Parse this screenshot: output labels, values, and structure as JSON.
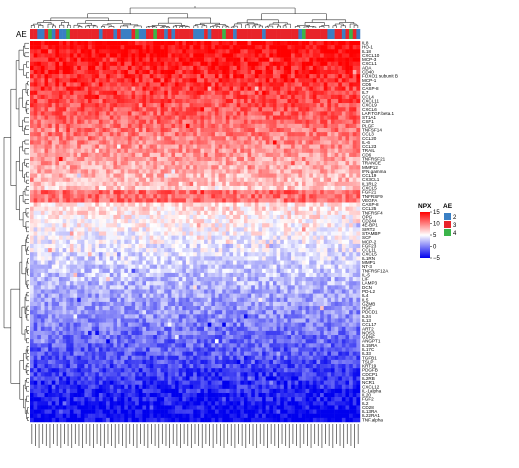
{
  "chart_data": {
    "type": "heatmap",
    "title": "",
    "annotation_track_label": "AE",
    "legend_placement": "right",
    "n_rows": 92,
    "n_cols": 91,
    "rows": [
      "IL8",
      "HO-1",
      "IL18",
      "CXCL10",
      "MCP-3",
      "CXCL1",
      "ADA",
      "CD40",
      "FOXO1 subunit B",
      "MCP-1",
      "CD5",
      "CASP-8",
      "IL7",
      "CCL4",
      "CXCL11",
      "CXCL9",
      "CXCL6",
      "LAP.TGF.beta.1",
      "ST1A1",
      "CSF1",
      "PLGF",
      "TNFSF14",
      "CCL3",
      "CCL20",
      "IL-6",
      "CCL23",
      "TRAIL",
      "CD6",
      "TNFRSF21",
      "TRANCE",
      "MMP12",
      "IFN.gamma",
      "CCL19",
      "CX3CL1",
      "IL1RL2",
      "CXCL5",
      "FGF21",
      "TNFRSF9",
      "VEGFA",
      "CASP-8",
      "CCL25",
      "TNFRSF4",
      "OPG",
      "CD244",
      "4E-BP1",
      "SIRT2",
      "STAMBP",
      "SCF",
      "MCP-2",
      "FGF23",
      "CCL11",
      "CXCL5",
      "IL1RN",
      "MMP1",
      "NT-3",
      "TNFRSF12A",
      "IL-5",
      "LIF",
      "LAMP3",
      "DCN",
      "PD-L2",
      "IL4",
      "IL5",
      "GZMB",
      "HGF",
      "PDCD1",
      "IL24",
      "IL13",
      "CCL17",
      "ART2",
      "NOS3",
      "GDNF",
      "ANGPT1",
      "IL15RA",
      "IL17C",
      "IL33",
      "TGFB1",
      "TSLP",
      "KRT19",
      "PDGFB",
      "CDCP1",
      "IL2RB",
      "NCR1",
      "CXCL12",
      "IL-1alpha",
      "IL20",
      "FGF2",
      "IL2",
      "CD28",
      "IL13RA",
      "IL22RA1",
      "TNF.alpha"
    ],
    "legends": [
      {
        "title": "NPX",
        "type": "continuous",
        "ticks": [
          15,
          10,
          5,
          0,
          -5
        ],
        "range": [
          -5,
          15
        ],
        "colors": {
          "low": "#0000ee",
          "mid": "#ffffff",
          "high": "#ff0000"
        }
      },
      {
        "title": "AE",
        "type": "categorical",
        "entries": [
          {
            "label": "2",
            "color": "#3a7fc4"
          },
          {
            "label": "3",
            "color": "#e8242a"
          },
          {
            "label": "4",
            "color": "#3bb44a"
          }
        ]
      }
    ]
  }
}
